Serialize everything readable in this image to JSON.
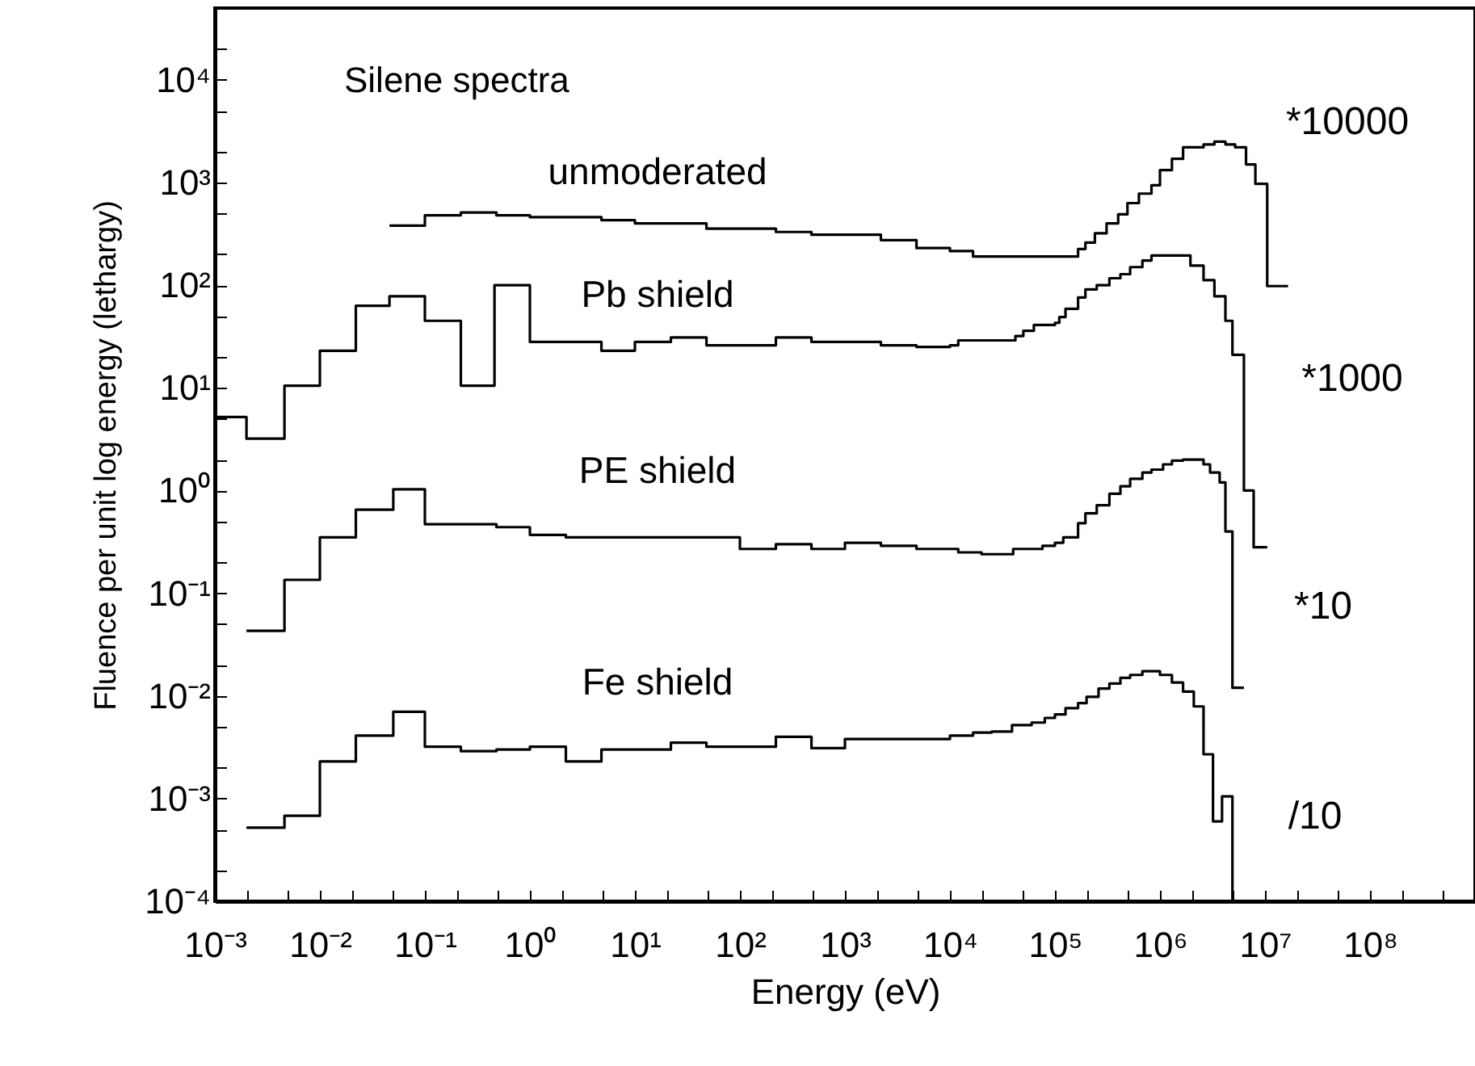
{
  "chart_data": {
    "type": "step",
    "xlabel": "Energy (eV)",
    "ylabel": "Fluence per unit log energy (lethargy)",
    "log": "xy",
    "grid": false,
    "marker": "none",
    "line_style": "solid",
    "xlim": [
      0.001,
      1000000000
    ],
    "ylim": [
      0.0001,
      50000
    ],
    "xticks": [
      {
        "value": 0.001,
        "label": "10⁻³"
      },
      {
        "value": 0.002,
        "label": null
      },
      {
        "value": 0.005,
        "label": null
      },
      {
        "value": 0.01,
        "label": "10⁻²"
      },
      {
        "value": 0.02,
        "label": null
      },
      {
        "value": 0.05,
        "label": null
      },
      {
        "value": 0.1,
        "label": "10⁻¹"
      },
      {
        "value": 0.2,
        "label": null
      },
      {
        "value": 0.5,
        "label": null
      },
      {
        "value": 1,
        "label": "10⁰"
      },
      {
        "value": 2,
        "label": null
      },
      {
        "value": 5,
        "label": null
      },
      {
        "value": 10,
        "label": "10¹"
      },
      {
        "value": 20,
        "label": null
      },
      {
        "value": 50,
        "label": null
      },
      {
        "value": 100,
        "label": "10²"
      },
      {
        "value": 200,
        "label": null
      },
      {
        "value": 500,
        "label": null
      },
      {
        "value": 1000,
        "label": "10³"
      },
      {
        "value": 2000,
        "label": null
      },
      {
        "value": 5000,
        "label": null
      },
      {
        "value": 10000,
        "label": "10⁴"
      },
      {
        "value": 20000,
        "label": null
      },
      {
        "value": 50000,
        "label": null
      },
      {
        "value": 100000,
        "label": "10⁵"
      },
      {
        "value": 200000,
        "label": null
      },
      {
        "value": 500000,
        "label": null
      },
      {
        "value": 1000000,
        "label": "10⁶"
      },
      {
        "value": 2000000,
        "label": null
      },
      {
        "value": 5000000,
        "label": null
      },
      {
        "value": 10000000,
        "label": "10⁷"
      },
      {
        "value": 20000000,
        "label": null
      },
      {
        "value": 50000000,
        "label": null
      },
      {
        "value": 100000000,
        "label": "10⁸"
      },
      {
        "value": 200000000,
        "label": null
      },
      {
        "value": 500000000,
        "label": null
      }
    ],
    "yticks": [
      {
        "value": 0.0001,
        "label": "10⁻⁴"
      },
      {
        "value": 0.0002,
        "label": null
      },
      {
        "value": 0.0005,
        "label": null
      },
      {
        "value": 0.001,
        "label": "10⁻³"
      },
      {
        "value": 0.002,
        "label": null
      },
      {
        "value": 0.005,
        "label": null
      },
      {
        "value": 0.01,
        "label": "10⁻²"
      },
      {
        "value": 0.02,
        "label": null
      },
      {
        "value": 0.05,
        "label": null
      },
      {
        "value": 0.1,
        "label": "10⁻¹"
      },
      {
        "value": 0.2,
        "label": null
      },
      {
        "value": 0.5,
        "label": null
      },
      {
        "value": 1,
        "label": "10⁰"
      },
      {
        "value": 2,
        "label": null
      },
      {
        "value": 5,
        "label": null
      },
      {
        "value": 10,
        "label": "10¹"
      },
      {
        "value": 20,
        "label": null
      },
      {
        "value": 50,
        "label": null
      },
      {
        "value": 100,
        "label": "10²"
      },
      {
        "value": 200,
        "label": null
      },
      {
        "value": 500,
        "label": null
      },
      {
        "value": 1000,
        "label": "10³"
      },
      {
        "value": 2000,
        "label": null
      },
      {
        "value": 5000,
        "label": null
      },
      {
        "value": 10000,
        "label": "10⁴"
      },
      {
        "value": 20000,
        "label": null
      }
    ],
    "series": [
      {
        "name": "unmoderated",
        "color": "#000000",
        "x": [
          0.046,
          0.1,
          0.22,
          0.48,
          1,
          4.8,
          10,
          48,
          220,
          480,
          2200,
          4800,
          10000,
          16600,
          166000,
          195000,
          240000,
          310000,
          400000,
          490000,
          630000,
          830000,
          1000000,
          1300000,
          1660000,
          2600000,
          3300000,
          4200000,
          5200000,
          6600000,
          8100000,
          10500000,
          16600000
        ],
        "values": [
          380,
          480,
          510,
          480,
          460,
          430,
          400,
          355,
          330,
          310,
          275,
          230,
          215,
          190,
          225,
          260,
          320,
          400,
          490,
          630,
          780,
          940,
          1320,
          1700,
          2200,
          2350,
          2500,
          2350,
          2200,
          1500,
          970,
          98,
          98
        ]
      },
      {
        "name": "Pb  shield",
        "color": "#000000",
        "x": [
          0.001,
          0.002,
          0.0046,
          0.01,
          0.022,
          0.046,
          0.1,
          0.22,
          0.46,
          1,
          4.8,
          10,
          22,
          48,
          220,
          480,
          2200,
          4800,
          10000,
          12000,
          42000,
          50000,
          63000,
          100000,
          110000,
          126000,
          166000,
          195000,
          250000,
          330000,
          420000,
          520000,
          680000,
          830000,
          1950000,
          2600000,
          3300000,
          4200000,
          4900000,
          6300000,
          7800000,
          10500000
        ],
        "values": [
          5.2,
          3.2,
          10.5,
          23,
          63,
          78,
          45,
          10.5,
          100,
          28,
          23,
          28,
          31,
          26,
          31,
          28,
          26,
          25,
          26,
          29,
          32,
          36,
          41,
          43,
          49,
          59,
          76,
          91,
          100,
          117,
          128,
          150,
          174,
          195,
          155,
          112,
          78,
          45,
          21,
          1.0,
          0.28,
          0.28
        ]
      },
      {
        "name": "PE  shield",
        "color": "#000000",
        "x": [
          0.002,
          0.0046,
          0.01,
          0.022,
          0.05,
          0.1,
          0.48,
          1,
          2.2,
          100,
          220,
          480,
          1000,
          2200,
          4800,
          12000,
          20000,
          40000,
          76000,
          100000,
          120000,
          166000,
          195000,
          250000,
          330000,
          420000,
          520000,
          680000,
          830000,
          1070000,
          1300000,
          1660000,
          2600000,
          3000000,
          3700000,
          4200000,
          4900000,
          6300000
        ],
        "values": [
          0.043,
          0.135,
          0.35,
          0.65,
          1.03,
          0.47,
          0.44,
          0.37,
          0.35,
          0.27,
          0.3,
          0.27,
          0.31,
          0.29,
          0.27,
          0.25,
          0.24,
          0.27,
          0.29,
          0.31,
          0.35,
          0.48,
          0.6,
          0.72,
          0.93,
          1.1,
          1.3,
          1.5,
          1.6,
          1.8,
          1.96,
          2.0,
          1.8,
          1.5,
          1.2,
          0.4,
          0.012,
          0.012
        ]
      },
      {
        "name": "Fe  shield",
        "color": "#000000",
        "x": [
          0.002,
          0.0046,
          0.01,
          0.022,
          0.05,
          0.1,
          0.22,
          0.48,
          1,
          2.2,
          4.8,
          22,
          48,
          220,
          480,
          1000,
          10000,
          16600,
          25000,
          39000,
          60000,
          80000,
          100000,
          126000,
          166000,
          200000,
          260000,
          330000,
          420000,
          520000,
          680000,
          1000000,
          1300000,
          1660000,
          2100000,
          2600000,
          3200000,
          3900000,
          4900000,
          6000000
        ],
        "values": [
          0.00052,
          0.00068,
          0.0023,
          0.0041,
          0.007,
          0.0032,
          0.0029,
          0.003,
          0.0032,
          0.0023,
          0.003,
          0.0035,
          0.0032,
          0.004,
          0.0031,
          0.0038,
          0.0041,
          0.0044,
          0.0045,
          0.0052,
          0.0055,
          0.0061,
          0.0066,
          0.0076,
          0.0085,
          0.0098,
          0.0118,
          0.0132,
          0.015,
          0.016,
          0.0174,
          0.016,
          0.0135,
          0.011,
          0.0079,
          0.0027,
          0.0006,
          0.00105,
          0.0001,
          0.0001
        ]
      }
    ],
    "annotations": [
      "Silene spectra",
      "*10000",
      "*1000",
      "*10",
      "/10"
    ]
  }
}
